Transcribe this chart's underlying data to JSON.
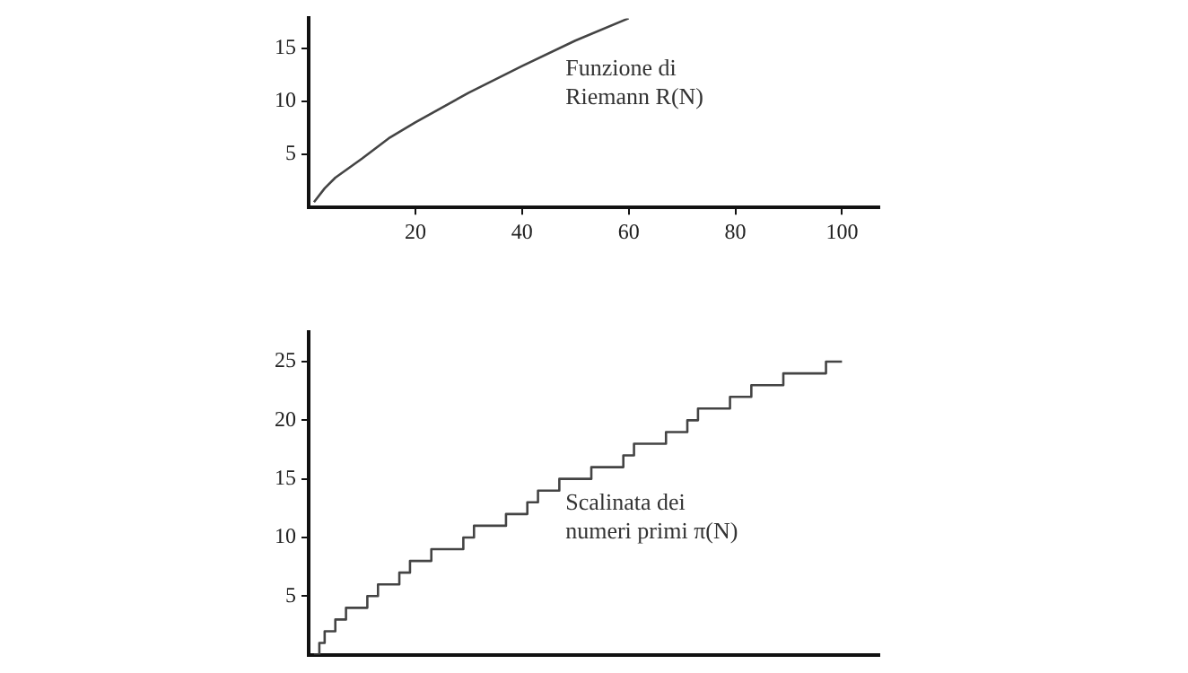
{
  "chart_data": [
    {
      "type": "line",
      "annotations": [
        "Funzione di\nRiemann R(N)"
      ],
      "x": [
        1,
        3,
        5,
        10,
        15,
        20,
        30,
        40,
        50,
        60
      ],
      "series": [
        {
          "color": "#444444",
          "values": [
            0.5,
            1.8,
            2.8,
            4.6,
            6.5,
            8.0,
            10.8,
            13.3,
            15.7,
            17.8
          ]
        }
      ],
      "xlim": [
        0,
        107
      ],
      "xticks": [
        20,
        40,
        60,
        80,
        100
      ],
      "ylim": [
        0,
        17.8
      ],
      "yticks": [
        5,
        10,
        15
      ],
      "grid": false,
      "legend": false
    },
    {
      "type": "step",
      "annotations": [
        "Scalinata dei\nnumeri primi π(N)"
      ],
      "x": [
        1,
        2,
        3,
        5,
        7,
        11,
        13,
        17,
        19,
        23,
        29,
        31,
        37,
        41,
        43,
        47,
        53,
        59,
        61,
        67,
        71,
        73,
        79,
        83,
        89,
        97,
        100
      ],
      "series": [
        {
          "color": "#444444",
          "values": [
            0,
            1,
            2,
            3,
            4,
            5,
            6,
            7,
            8,
            9,
            10,
            11,
            12,
            13,
            14,
            15,
            16,
            17,
            18,
            19,
            20,
            21,
            22,
            23,
            24,
            25,
            25
          ]
        }
      ],
      "xlim": [
        0,
        107
      ],
      "ylim": [
        0,
        27.5
      ],
      "yticks": [
        5,
        10,
        15,
        20,
        25
      ],
      "grid": false,
      "legend": false,
      "tick_labels": "y"
    }
  ]
}
